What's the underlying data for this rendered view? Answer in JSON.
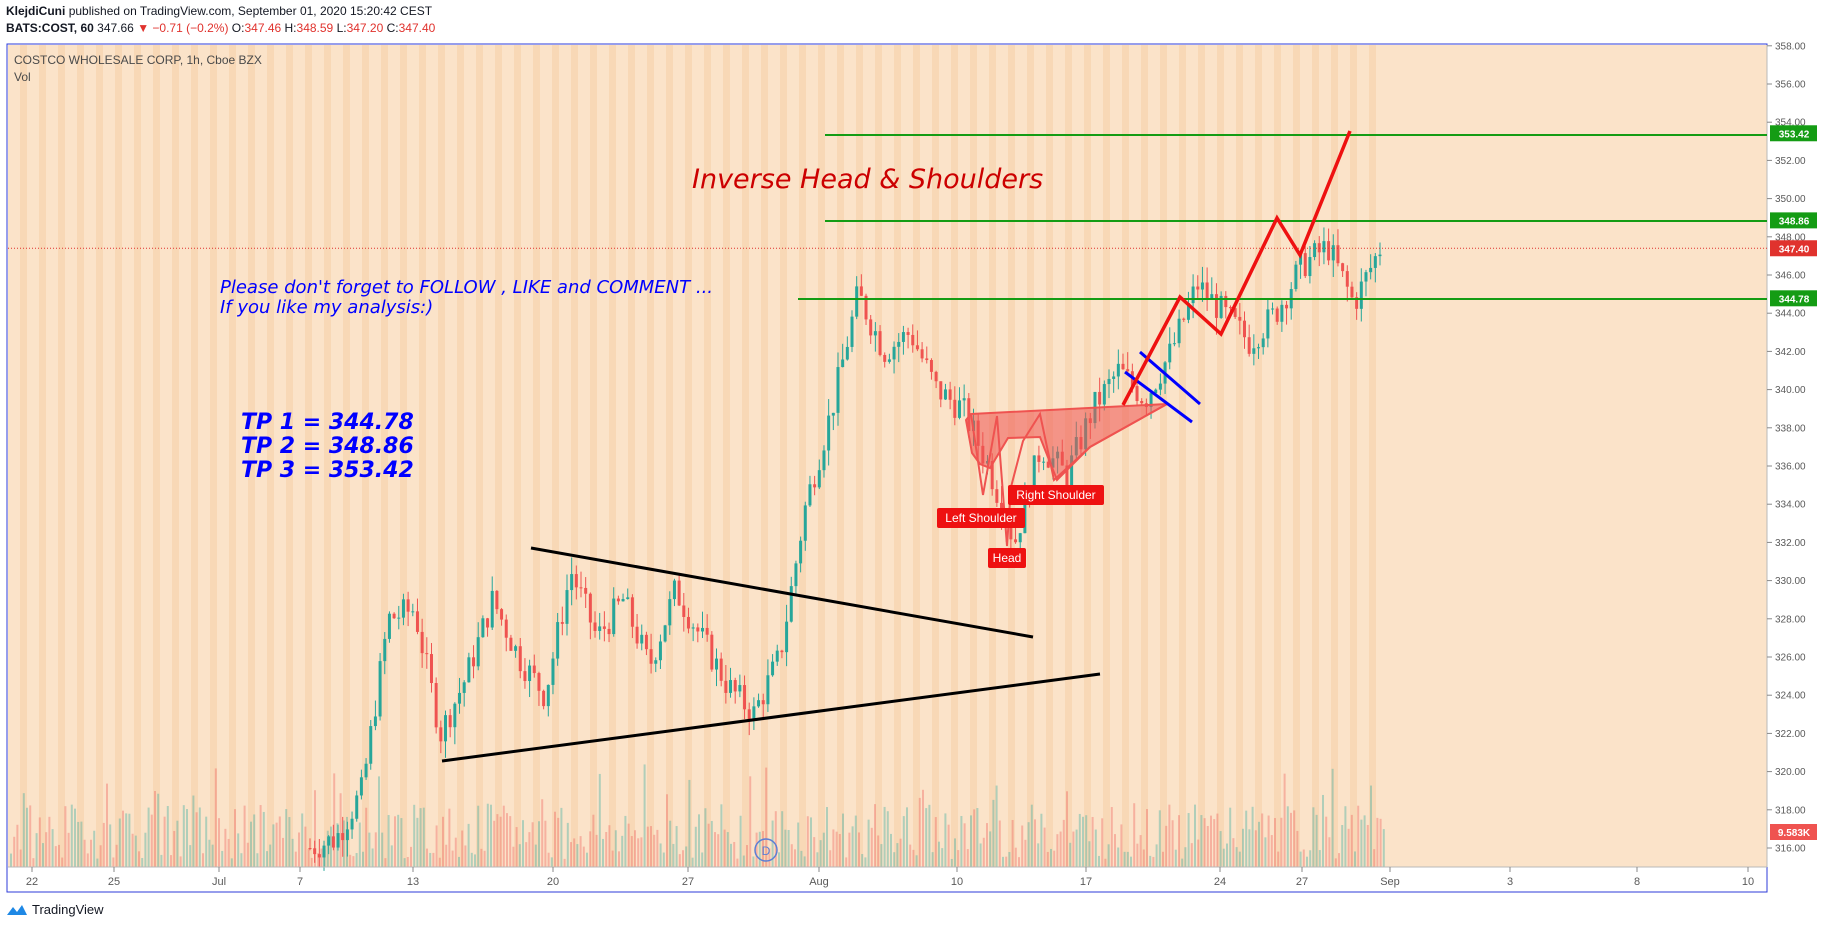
{
  "header": {
    "author": "KlejdiCuni",
    "published_text": "published on TradingView.com, September 01, 2020 15:20:42 CEST",
    "symbol": "BATS:COST, 60",
    "last": "347.66",
    "change": "▼ −0.71 (−0.2%)",
    "o_label": "O:",
    "o": "347.46",
    "h_label": "H:",
    "h": "348.59",
    "l_label": "L:",
    "l": "347.20",
    "c_label": "C:",
    "c": "347.40"
  },
  "legend": {
    "title": "COSTCO WHOLESALE CORP, 1h, Cboe BZX",
    "vol": "Vol"
  },
  "footer": {
    "brand": "TradingView"
  },
  "colors": {
    "background": "#fbe3c9",
    "up": "#26a69a",
    "down": "#ef5350",
    "annotation_blue": "#0000ff",
    "annotation_red": "#cc0000",
    "level_green": "#149c14"
  },
  "chart_data": {
    "type": "candlestick",
    "title": "COSTCO WHOLESALE CORP, 1h, Cboe BZX",
    "y_axis_ticks": [
      "316.00",
      "318.00",
      "320.00",
      "322.00",
      "324.00",
      "326.00",
      "328.00",
      "330.00",
      "332.00",
      "334.00",
      "336.00",
      "338.00",
      "340.00",
      "342.00",
      "344.00",
      "346.00",
      "348.00",
      "350.00",
      "352.00",
      "354.00",
      "356.00",
      "358.00"
    ],
    "x_axis_ticks": [
      "22",
      "25",
      "Jul",
      "7",
      "13",
      "20",
      "27",
      "Aug",
      "10",
      "17",
      "24",
      "27",
      "Sep",
      "3",
      "8",
      "10"
    ],
    "ylim": [
      315,
      358.5
    ],
    "price_path": [
      [
        "Jun 22",
        316
      ],
      [
        "Jul 7",
        316.5
      ],
      [
        "Jul 9",
        319
      ],
      [
        "Jul 10",
        328
      ],
      [
        "Jul 12",
        328.5
      ],
      [
        "Jul 13",
        322
      ],
      [
        "Jul 14",
        325
      ],
      [
        "Jul 16",
        329
      ],
      [
        "Jul 18",
        326
      ],
      [
        "Jul 20",
        324
      ],
      [
        "Jul 21",
        330.5
      ],
      [
        "Jul 22",
        327
      ],
      [
        "Jul 24",
        329
      ],
      [
        "Jul 26",
        325.5
      ],
      [
        "Jul 28",
        329.5
      ],
      [
        "Jul 29",
        327
      ],
      [
        "Jul 30",
        324.5
      ],
      [
        "Jul 31",
        323
      ],
      [
        "Aug 1",
        326
      ],
      [
        "Aug 3",
        334
      ],
      [
        "Aug 4",
        339
      ],
      [
        "Aug 5",
        345
      ],
      [
        "Aug 6",
        342
      ],
      [
        "Aug 7",
        343
      ],
      [
        "Aug 9",
        340
      ],
      [
        "Aug 10",
        339
      ],
      [
        "Aug 11",
        336
      ],
      [
        "Aug 12",
        332
      ],
      [
        "Aug 13",
        337
      ],
      [
        "Aug 14",
        335.5
      ],
      [
        "Aug 16",
        339
      ],
      [
        "Aug 18",
        341
      ],
      [
        "Aug 20",
        339.5
      ],
      [
        "Aug 21",
        342
      ],
      [
        "Aug 22",
        345.5
      ],
      [
        "Aug 23",
        344
      ],
      [
        "Aug 24",
        342.5
      ],
      [
        "Aug 25",
        344
      ],
      [
        "Aug 26",
        346.5
      ],
      [
        "Aug 27",
        347.5
      ],
      [
        "Aug 28",
        344.5
      ],
      [
        "Aug 29",
        347.4
      ]
    ],
    "price_labels": [
      {
        "text": "353.42",
        "value": 353.42,
        "color": "#149c14"
      },
      {
        "text": "348.86",
        "value": 348.86,
        "color": "#149c14"
      },
      {
        "text": "347.40",
        "value": 347.4,
        "color": "#e0322d"
      },
      {
        "text": "344.78",
        "value": 344.78,
        "color": "#149c14"
      }
    ],
    "volume_label": {
      "text": "9.583K",
      "color": "#ef5350"
    },
    "annotations": {
      "pattern_title": "Inverse Head & Shoulders",
      "follow_line1": "Please don't forget  to FOLLOW , LIKE and COMMENT ...",
      "follow_line2": "If you like my analysis:)",
      "tp1": "TP 1 = 344.78",
      "tp2": "TP 2 = 348.86",
      "tp3": "TP 3 = 353.42",
      "left_shoulder": "Left Shoulder",
      "head": "Head",
      "right_shoulder": "Right Shoulder",
      "watermark": "D"
    }
  }
}
